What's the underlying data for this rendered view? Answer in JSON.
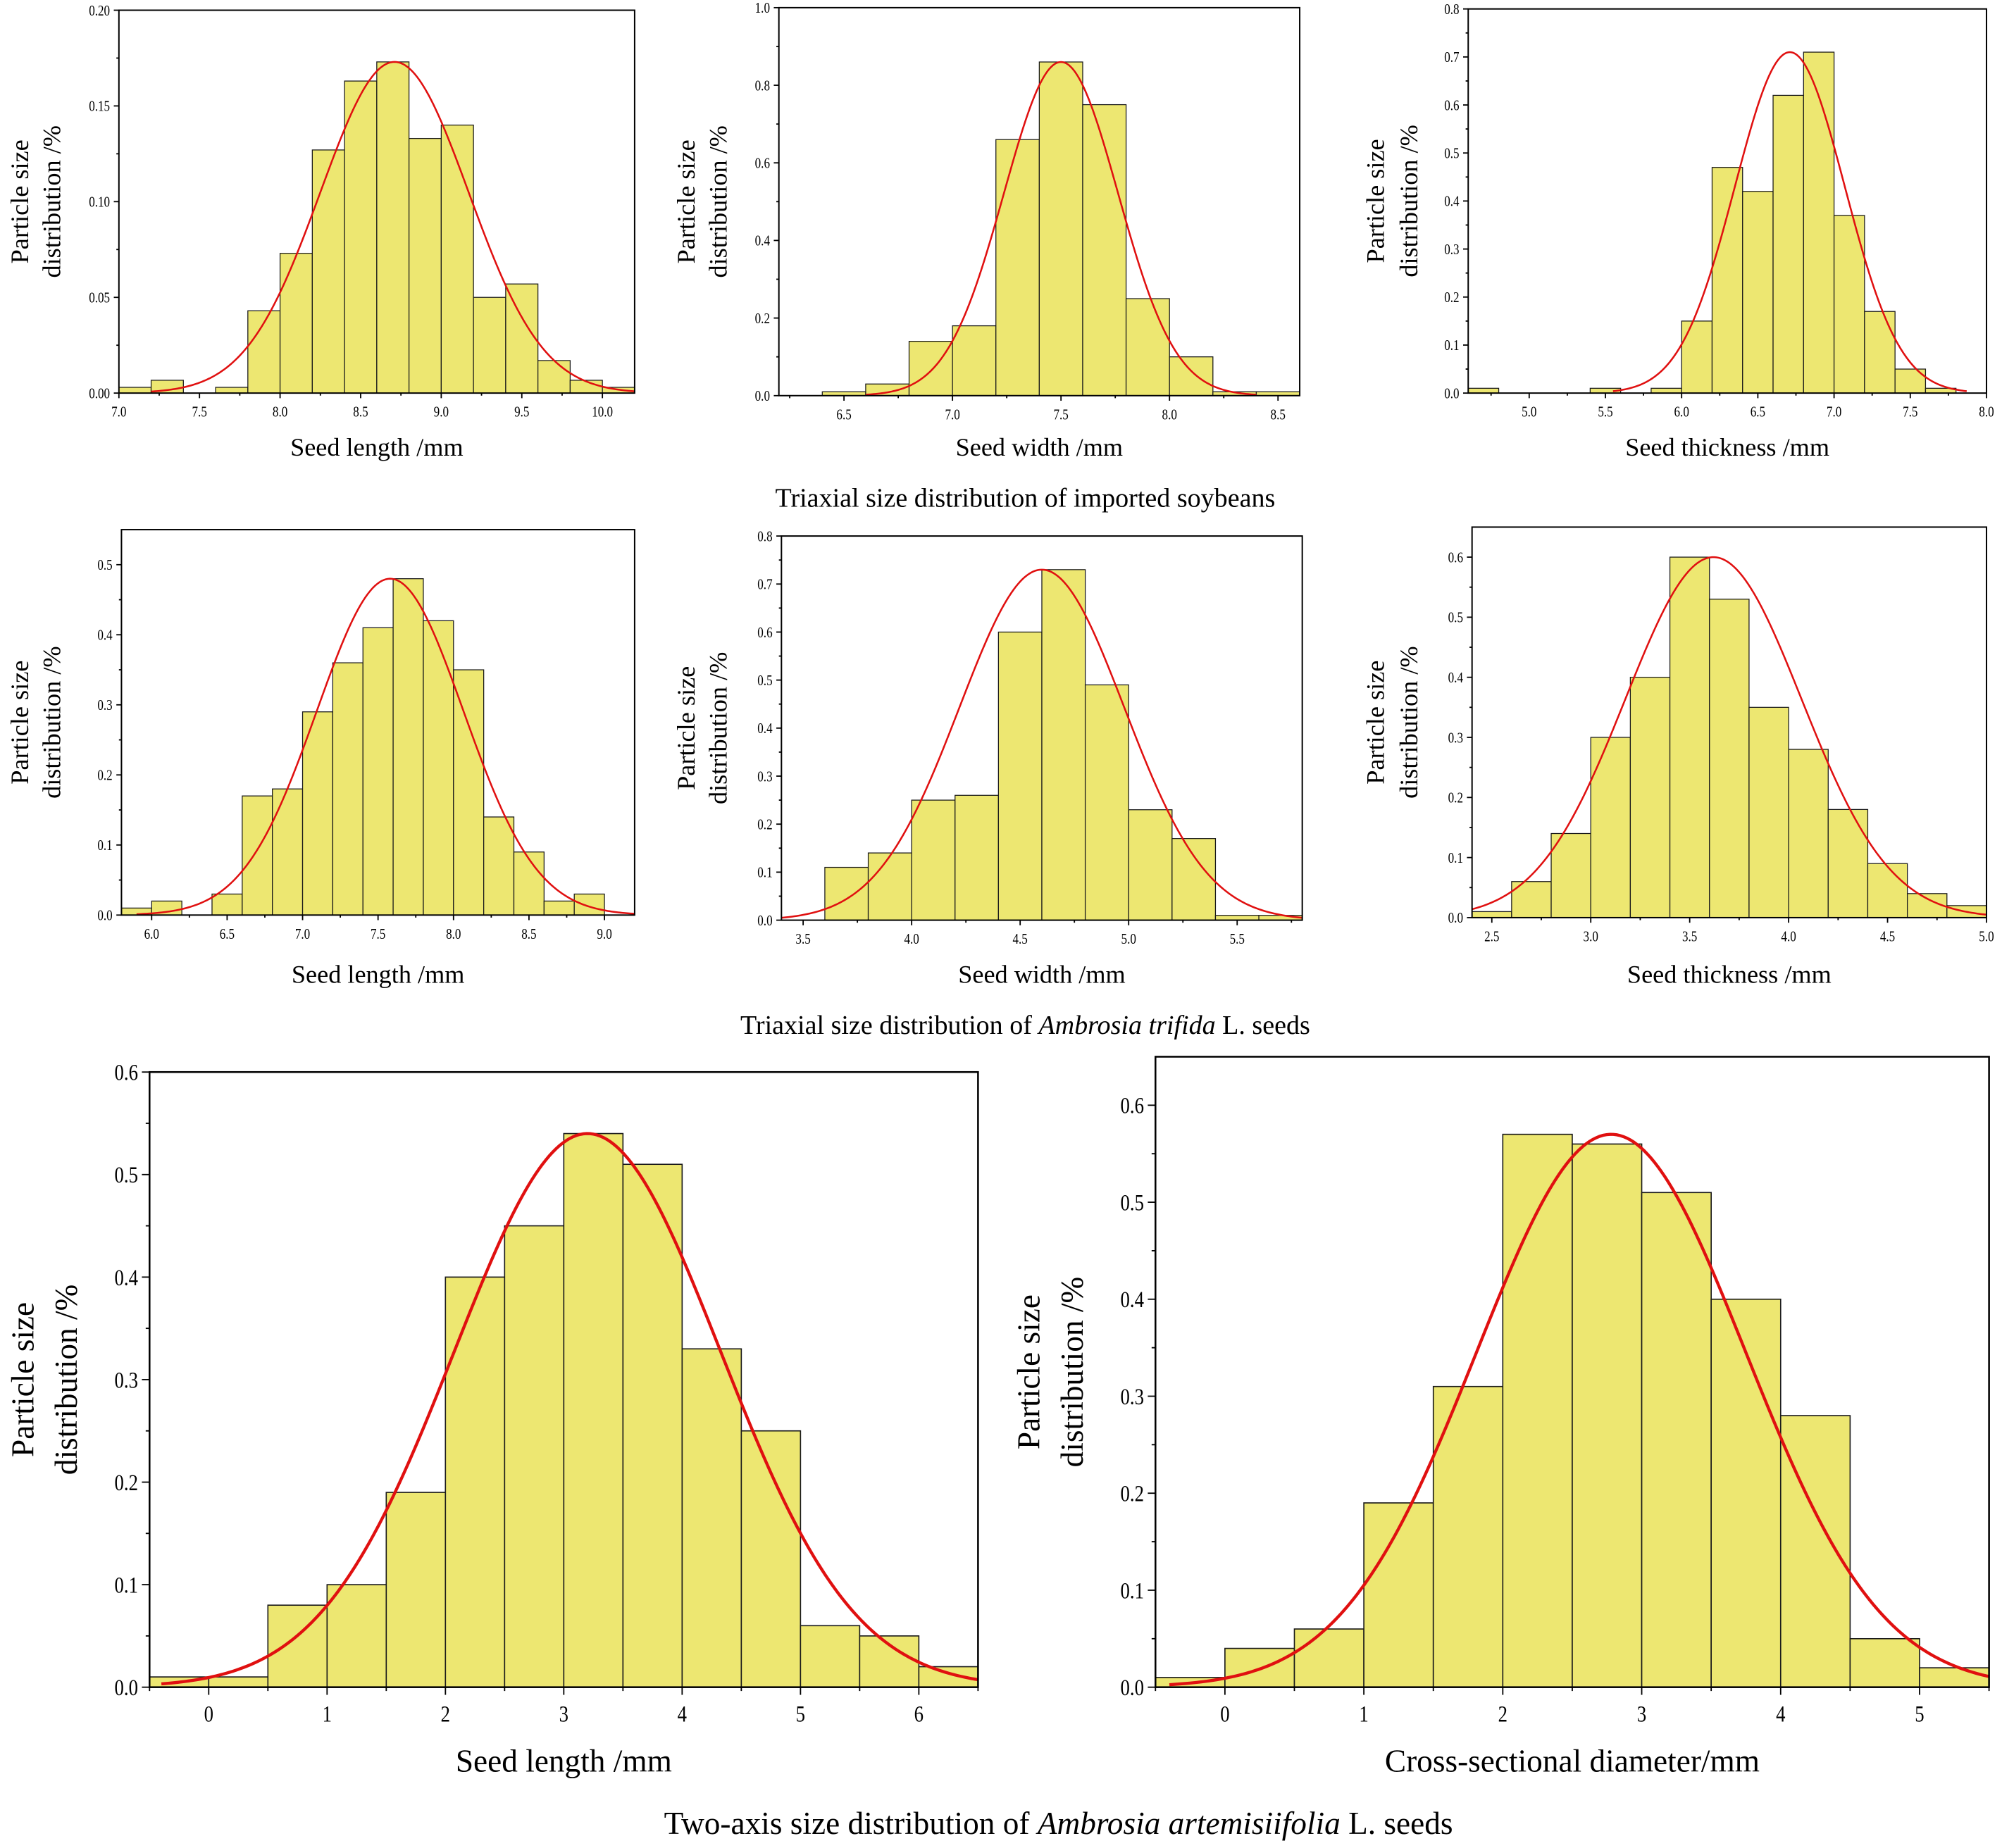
{
  "captions": [
    {
      "parts": [
        {
          "text": "Triaxial size distribution of imported soybeans",
          "italic": false
        }
      ]
    },
    {
      "parts": [
        {
          "text": "Triaxial size distribution of ",
          "italic": false
        },
        {
          "text": "Ambrosia trifida",
          "italic": true
        },
        {
          "text": " L. seeds",
          "italic": false
        }
      ]
    },
    {
      "parts": [
        {
          "text": "Two-axis size distribution of ",
          "italic": false
        },
        {
          "text": "Ambrosia artemisiifolia",
          "italic": true
        },
        {
          "text": " L. seeds",
          "italic": false
        }
      ]
    }
  ],
  "colors": {
    "bar": "#ede771",
    "bar_stroke": "#1a1a1a",
    "fit": "#e01010"
  },
  "chart_data": [
    {
      "type": "bar",
      "group": "imported soybeans",
      "xlabel": "Seed length /mm",
      "ylabel": [
        "Particle size",
        "distribution /%"
      ],
      "xlim": [
        7.0,
        10.2
      ],
      "ylim": [
        0,
        0.2
      ],
      "bin_width": 0.2,
      "x": [
        7.0,
        7.2,
        7.4,
        7.6,
        7.8,
        8.0,
        8.2,
        8.4,
        8.6,
        8.8,
        9.0,
        9.2,
        9.4,
        9.6,
        9.8,
        10.0
      ],
      "values": [
        0.003,
        0.0067,
        0,
        0.003,
        0.043,
        0.073,
        0.127,
        0.163,
        0.173,
        0.133,
        0.14,
        0.05,
        0.057,
        0.017,
        0.0067,
        0.003
      ],
      "xticks": [
        7.0,
        7.5,
        8.0,
        8.5,
        9.0,
        9.5,
        10.0
      ],
      "xtick_labels": [
        "7.0",
        "7.5",
        "8.0",
        "8.5",
        "9.0",
        "9.5",
        "10.0"
      ],
      "yticks": [
        0,
        0.05,
        0.1,
        0.15,
        0.2
      ],
      "ytick_labels": [
        "0.00",
        "0.05",
        "0.10",
        "0.15",
        "0.20"
      ],
      "fit": {
        "type": "normal",
        "mean": 8.71,
        "sigma": 0.46,
        "peak": 0.173,
        "range": [
          7.2,
          10.2
        ]
      }
    },
    {
      "type": "bar",
      "group": "imported soybeans",
      "xlabel": "Seed width /mm",
      "ylabel": [
        "Particle size",
        "distribution /%"
      ],
      "xlim": [
        6.2,
        8.6
      ],
      "ylim": [
        0,
        1.0
      ],
      "bin_width": 0.2,
      "x": [
        6.4,
        6.6,
        6.8,
        7.0,
        7.2,
        7.4,
        7.6,
        7.8,
        8.0,
        8.2,
        8.4
      ],
      "values": [
        0.01,
        0.03,
        0.14,
        0.18,
        0.66,
        0.86,
        0.75,
        0.25,
        0.1,
        0.01,
        0.01
      ],
      "xticks": [
        6.5,
        7.0,
        7.5,
        8.0,
        8.5
      ],
      "xtick_labels": [
        "6.5",
        "7.0",
        "7.5",
        "8.0",
        "8.5"
      ],
      "yticks": [
        0,
        0.2,
        0.4,
        0.6,
        0.8,
        1.0
      ],
      "ytick_labels": [
        "0.0",
        "0.2",
        "0.4",
        "0.6",
        "0.8",
        "1.0"
      ],
      "fit": {
        "type": "normal",
        "mean": 7.5,
        "sigma": 0.263,
        "peak": 0.86,
        "range": [
          6.6,
          8.4
        ]
      }
    },
    {
      "type": "bar",
      "group": "imported soybeans",
      "xlabel": "Seed thickness /mm",
      "ylabel": [
        "Particle size",
        "distribution /%"
      ],
      "xlim": [
        4.6,
        8.0
      ],
      "ylim": [
        0,
        0.8
      ],
      "bin_width": 0.2,
      "x": [
        4.6,
        5.4,
        5.8,
        6.0,
        6.2,
        6.4,
        6.6,
        6.8,
        7.0,
        7.2,
        7.4,
        7.6
      ],
      "values": [
        0.01,
        0.01,
        0.01,
        0.15,
        0.47,
        0.42,
        0.62,
        0.71,
        0.37,
        0.17,
        0.05,
        0.01
      ],
      "xticks": [
        5.0,
        5.5,
        6.0,
        6.5,
        7.0,
        7.5,
        8.0
      ],
      "xtick_labels": [
        "5.0",
        "5.5",
        "6.0",
        "6.5",
        "7.0",
        "7.5",
        "8.0"
      ],
      "yticks": [
        0,
        0.1,
        0.2,
        0.3,
        0.4,
        0.5,
        0.6,
        0.7,
        0.8
      ],
      "ytick_labels": [
        "0.0",
        "0.1",
        "0.2",
        "0.3",
        "0.4",
        "0.5",
        "0.6",
        "0.7",
        "0.8"
      ],
      "fit": {
        "type": "normal",
        "mean": 6.71,
        "sigma": 0.36,
        "peak": 0.71,
        "range": [
          5.55,
          7.87
        ]
      }
    },
    {
      "type": "bar",
      "group": "Ambrosia trifida",
      "xlabel": "Seed length /mm",
      "ylabel": [
        "Particle size",
        "distribution /%"
      ],
      "xlim": [
        5.8,
        9.2
      ],
      "ylim": [
        0,
        0.55
      ],
      "bin_width": 0.2,
      "x": [
        5.8,
        6.0,
        6.4,
        6.6,
        6.8,
        7.0,
        7.2,
        7.4,
        7.6,
        7.8,
        8.0,
        8.2,
        8.4,
        8.6,
        8.8
      ],
      "values": [
        0.01,
        0.02,
        0.03,
        0.17,
        0.18,
        0.29,
        0.36,
        0.41,
        0.48,
        0.42,
        0.35,
        0.14,
        0.09,
        0.02,
        0.03
      ],
      "xticks": [
        6.0,
        6.5,
        7.0,
        7.5,
        8.0,
        8.5,
        9.0
      ],
      "xtick_labels": [
        "6.0",
        "6.5",
        "7.0",
        "7.5",
        "8.0",
        "8.5",
        "9.0"
      ],
      "yticks": [
        0,
        0.1,
        0.2,
        0.3,
        0.4,
        0.5
      ],
      "ytick_labels": [
        "0.0",
        "0.1",
        "0.2",
        "0.3",
        "0.4",
        "0.5"
      ],
      "fit": {
        "type": "normal",
        "mean": 7.58,
        "sigma": 0.486,
        "peak": 0.48,
        "range": [
          5.9,
          9.2
        ]
      }
    },
    {
      "type": "bar",
      "group": "Ambrosia trifida",
      "xlabel": "Seed width /mm",
      "ylabel": [
        "Particle size",
        "distribution /%"
      ],
      "xlim": [
        3.4,
        5.8
      ],
      "ylim": [
        0,
        0.8
      ],
      "bin_width": 0.2,
      "x": [
        3.6,
        3.8,
        4.0,
        4.2,
        4.4,
        4.6,
        4.8,
        5.0,
        5.2,
        5.4,
        5.6
      ],
      "values": [
        0.11,
        0.14,
        0.25,
        0.26,
        0.6,
        0.73,
        0.49,
        0.23,
        0.17,
        0.01,
        0.01
      ],
      "xticks": [
        3.5,
        4.0,
        4.5,
        5.0,
        5.5
      ],
      "xtick_labels": [
        "3.5",
        "4.0",
        "4.5",
        "5.0",
        "5.5"
      ],
      "yticks": [
        0,
        0.1,
        0.2,
        0.3,
        0.4,
        0.5,
        0.6,
        0.7,
        0.8
      ],
      "ytick_labels": [
        "0.0",
        "0.1",
        "0.2",
        "0.3",
        "0.4",
        "0.5",
        "0.6",
        "0.7",
        "0.8"
      ],
      "fit": {
        "type": "normal",
        "mean": 4.6,
        "sigma": 0.38,
        "peak": 0.73,
        "range": [
          3.4,
          5.8
        ]
      }
    },
    {
      "type": "bar",
      "group": "Ambrosia trifida",
      "xlabel": "Seed thickness /mm",
      "ylabel": [
        "Particle size",
        "distribution /%"
      ],
      "xlim": [
        2.4,
        5.0
      ],
      "ylim": [
        0,
        0.65
      ],
      "bin_width": 0.2,
      "x": [
        2.4,
        2.6,
        2.8,
        3.0,
        3.2,
        3.4,
        3.6,
        3.8,
        4.0,
        4.2,
        4.4,
        4.6,
        4.8
      ],
      "values": [
        0.01,
        0.06,
        0.14,
        0.3,
        0.4,
        0.6,
        0.53,
        0.35,
        0.28,
        0.18,
        0.09,
        0.04,
        0.02
      ],
      "xticks": [
        2.5,
        3.0,
        3.5,
        4.0,
        4.5,
        5.0
      ],
      "xtick_labels": [
        "2.5",
        "3.0",
        "3.5",
        "4.0",
        "4.5",
        "5.0"
      ],
      "yticks": [
        0,
        0.1,
        0.2,
        0.3,
        0.4,
        0.5,
        0.6
      ],
      "ytick_labels": [
        "0.0",
        "0.1",
        "0.2",
        "0.3",
        "0.4",
        "0.5",
        "0.6"
      ],
      "fit": {
        "type": "normal",
        "mean": 3.62,
        "sigma": 0.445,
        "peak": 0.6,
        "range": [
          2.4,
          5.0
        ]
      }
    },
    {
      "type": "bar",
      "group": "Ambrosia artemisiifolia",
      "xlabel": "Seed length /mm",
      "ylabel": [
        "Particle size",
        "distribution /%"
      ],
      "xlim": [
        -0.5,
        6.5
      ],
      "ylim": [
        0,
        0.6
      ],
      "bin_width": 0.5,
      "x": [
        -0.5,
        0,
        0.5,
        1,
        1.5,
        2,
        2.5,
        3,
        3.5,
        4,
        4.5,
        5,
        5.5,
        6
      ],
      "values": [
        0.01,
        0.01,
        0.08,
        0.1,
        0.19,
        0.4,
        0.45,
        0.54,
        0.51,
        0.33,
        0.25,
        0.06,
        0.05,
        0.02
      ],
      "xticks": [
        0,
        1,
        2,
        3,
        4,
        5,
        6
      ],
      "xtick_labels": [
        "0",
        "1",
        "2",
        "3",
        "4",
        "5",
        "6"
      ],
      "yticks": [
        0,
        0.1,
        0.2,
        0.3,
        0.4,
        0.5,
        0.6
      ],
      "ytick_labels": [
        "0.0",
        "0.1",
        "0.2",
        "0.3",
        "0.4",
        "0.5",
        "0.6"
      ],
      "fit": {
        "type": "normal",
        "mean": 3.2,
        "sigma": 1.125,
        "peak": 0.54,
        "range": [
          -0.4,
          6.5
        ]
      }
    },
    {
      "type": "bar",
      "group": "Ambrosia artemisiifolia",
      "xlabel": "Cross-sectional diameter/mm",
      "ylabel": [
        "Particle size",
        "distribution /%"
      ],
      "xlim": [
        -0.5,
        5.5
      ],
      "ylim": [
        0,
        0.65
      ],
      "bin_width": 0.5,
      "x": [
        -0.5,
        0,
        0.5,
        1,
        1.5,
        2,
        2.5,
        3,
        3.5,
        4,
        4.5,
        5
      ],
      "values": [
        0.01,
        0.04,
        0.06,
        0.19,
        0.31,
        0.57,
        0.56,
        0.51,
        0.4,
        0.28,
        0.05,
        0.02
      ],
      "xticks": [
        0,
        1,
        2,
        3,
        4,
        5
      ],
      "xtick_labels": [
        "0",
        "1",
        "2",
        "3",
        "4",
        "5"
      ],
      "yticks": [
        0,
        0.1,
        0.2,
        0.3,
        0.4,
        0.5,
        0.6
      ],
      "ytick_labels": [
        "0.0",
        "0.1",
        "0.2",
        "0.3",
        "0.4",
        "0.5",
        "0.6"
      ],
      "fit": {
        "type": "normal",
        "mean": 2.78,
        "sigma": 0.968,
        "peak": 0.57,
        "range": [
          -0.4,
          5.5
        ]
      }
    }
  ]
}
